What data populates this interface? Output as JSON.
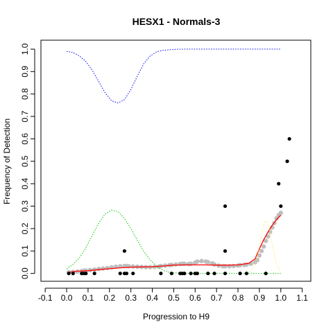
{
  "chart_data": {
    "type": "scatter",
    "title": "HESX1 - Normals-3",
    "xlabel": "Progression to H9",
    "ylabel": "Frequency of Detection",
    "xlim": [
      -0.12,
      1.14
    ],
    "ylim": [
      -0.035,
      1.04
    ],
    "x_ticks": [
      "-0.1",
      "0.0",
      "0.1",
      "0.2",
      "0.3",
      "0.4",
      "0.5",
      "0.6",
      "0.7",
      "0.8",
      "0.9",
      "1.0",
      "1.1"
    ],
    "x_tick_values": [
      -0.1,
      0.0,
      0.1,
      0.2,
      0.3,
      0.4,
      0.5,
      0.6,
      0.7,
      0.8,
      0.9,
      1.0,
      1.1
    ],
    "y_ticks": [
      "0.0",
      "0.1",
      "0.2",
      "0.3",
      "0.4",
      "0.5",
      "0.6",
      "0.7",
      "0.8",
      "0.9",
      "1.0"
    ],
    "y_tick_values": [
      0.0,
      0.1,
      0.2,
      0.3,
      0.4,
      0.5,
      0.6,
      0.7,
      0.8,
      0.9,
      1.0
    ],
    "grid": false,
    "observed_points": {
      "color": "#000000",
      "x": [
        0.01,
        0.03,
        0.07,
        0.08,
        0.09,
        0.13,
        0.25,
        0.27,
        0.28,
        0.31,
        0.44,
        0.49,
        0.53,
        0.54,
        0.55,
        0.58,
        0.6,
        0.61,
        0.66,
        0.69,
        0.74,
        0.81,
        0.84,
        0.93,
        0.27,
        0.74,
        0.74,
        0.99,
        1.0,
        1.03,
        1.04
      ],
      "y": [
        0,
        0,
        0,
        0,
        0,
        0,
        0,
        0,
        0,
        0,
        0,
        0,
        0,
        0,
        0,
        0,
        0,
        0,
        0,
        0,
        0,
        0,
        0,
        0,
        0.1,
        0.1,
        0.3,
        0.4,
        0.3,
        0.5,
        0.6
      ]
    },
    "smoothed_points": {
      "color": "#bebebe",
      "x": [
        0.01,
        0.03,
        0.05,
        0.07,
        0.08,
        0.09,
        0.11,
        0.13,
        0.15,
        0.17,
        0.19,
        0.21,
        0.23,
        0.25,
        0.27,
        0.28,
        0.29,
        0.31,
        0.33,
        0.35,
        0.37,
        0.39,
        0.41,
        0.43,
        0.44,
        0.46,
        0.48,
        0.49,
        0.51,
        0.53,
        0.54,
        0.55,
        0.57,
        0.58,
        0.6,
        0.61,
        0.63,
        0.65,
        0.66,
        0.68,
        0.69,
        0.71,
        0.73,
        0.74,
        0.76,
        0.78,
        0.8,
        0.81,
        0.83,
        0.84,
        0.86,
        0.88,
        0.89,
        0.9,
        0.91,
        0.92,
        0.93,
        0.94,
        0.95,
        0.96,
        0.97,
        0.98,
        0.99,
        1.0
      ],
      "y": [
        0.005,
        0.007,
        0.008,
        0.01,
        0.012,
        0.013,
        0.015,
        0.017,
        0.02,
        0.022,
        0.024,
        0.027,
        0.03,
        0.032,
        0.033,
        0.033,
        0.032,
        0.031,
        0.03,
        0.029,
        0.028,
        0.028,
        0.029,
        0.03,
        0.033,
        0.035,
        0.037,
        0.038,
        0.04,
        0.042,
        0.043,
        0.043,
        0.042,
        0.043,
        0.048,
        0.053,
        0.055,
        0.053,
        0.05,
        0.045,
        0.04,
        0.035,
        0.032,
        0.032,
        0.032,
        0.033,
        0.035,
        0.037,
        0.038,
        0.04,
        0.043,
        0.05,
        0.06,
        0.08,
        0.1,
        0.12,
        0.145,
        0.165,
        0.185,
        0.205,
        0.225,
        0.245,
        0.26,
        0.27
      ]
    },
    "series": [
      {
        "name": "",
        "color": "#ff0000",
        "style": "solid",
        "x": [
          0.01,
          0.05,
          0.1,
          0.15,
          0.2,
          0.25,
          0.3,
          0.35,
          0.4,
          0.45,
          0.5,
          0.55,
          0.6,
          0.65,
          0.7,
          0.75,
          0.8,
          0.85,
          0.88,
          0.9,
          0.92,
          0.94,
          0.96,
          0.98,
          1.0
        ],
        "y": [
          0.005,
          0.01,
          0.012,
          0.017,
          0.021,
          0.025,
          0.028,
          0.029,
          0.03,
          0.033,
          0.037,
          0.038,
          0.038,
          0.038,
          0.037,
          0.037,
          0.038,
          0.045,
          0.065,
          0.11,
          0.15,
          0.185,
          0.215,
          0.24,
          0.26
        ]
      },
      {
        "name": "",
        "color": "#0000ff",
        "style": "dotted",
        "x": [
          0.0,
          0.03,
          0.06,
          0.09,
          0.12,
          0.15,
          0.18,
          0.21,
          0.24,
          0.27,
          0.3,
          0.33,
          0.36,
          0.39,
          0.42,
          0.45,
          0.5,
          0.55,
          0.6,
          0.7,
          0.8,
          0.9,
          1.0
        ],
        "y": [
          0.99,
          0.985,
          0.97,
          0.945,
          0.905,
          0.855,
          0.805,
          0.77,
          0.76,
          0.775,
          0.82,
          0.88,
          0.935,
          0.97,
          0.988,
          0.995,
          0.999,
          1.0,
          1.0,
          1.0,
          1.0,
          1.0,
          1.0
        ]
      },
      {
        "name": "",
        "color": "#00c800",
        "style": "dotted",
        "x": [
          0.0,
          0.03,
          0.06,
          0.09,
          0.12,
          0.15,
          0.18,
          0.21,
          0.24,
          0.27,
          0.3,
          0.33,
          0.36,
          0.39,
          0.42,
          0.45,
          0.48,
          0.5,
          0.6,
          0.7,
          0.8,
          0.9,
          1.0
        ],
        "y": [
          0.02,
          0.04,
          0.07,
          0.115,
          0.17,
          0.225,
          0.265,
          0.283,
          0.275,
          0.245,
          0.2,
          0.148,
          0.098,
          0.06,
          0.032,
          0.014,
          0.005,
          0.002,
          0.0,
          0.0,
          0.0,
          0.0,
          0.0
        ]
      },
      {
        "name": "",
        "color": "#ffe866",
        "style": "dotted",
        "x": [
          0.84,
          0.86,
          0.88,
          0.89,
          0.9,
          0.91,
          0.92,
          0.93,
          0.94,
          0.95,
          0.96,
          0.97,
          0.98,
          0.99,
          1.0
        ],
        "y": [
          0.0,
          0.01,
          0.04,
          0.07,
          0.12,
          0.17,
          0.215,
          0.235,
          0.225,
          0.185,
          0.13,
          0.08,
          0.045,
          0.02,
          0.008
        ]
      }
    ]
  }
}
